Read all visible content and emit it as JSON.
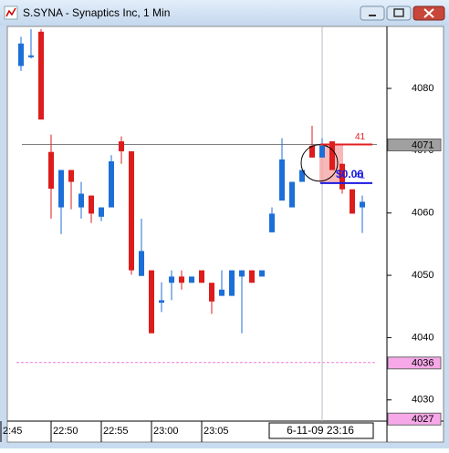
{
  "window": {
    "title": "S.SYNA - Synaptics Inc, 1 Min"
  },
  "chart_data": {
    "type": "candlestick",
    "categories": [
      "2:45",
      null,
      null,
      null,
      null,
      "22:50",
      null,
      null,
      null,
      null,
      "22:55",
      null,
      null,
      null,
      null,
      "23:00",
      null,
      null,
      null,
      null,
      "23:05",
      null,
      null,
      null,
      null,
      null,
      null,
      null,
      null,
      null,
      null,
      null,
      null,
      null,
      null
    ],
    "open": [
      4083.6,
      4085.0,
      4089.1,
      4069.8,
      4060.9,
      4066.9,
      4060.9,
      4062.8,
      4059.4,
      4060.9,
      4071.5,
      4069.9,
      4049.9,
      4050.8,
      4045.6,
      4048.8,
      4049.8,
      4048.8,
      4050.8,
      4048.8,
      4046.7,
      4046.7,
      4049.8,
      4050.8,
      4049.8,
      4056.9,
      4062.0,
      4060.9,
      4065.0,
      4070.8,
      4068.9,
      4071.5,
      4067.9,
      4063.8,
      4060.9
    ],
    "high": [
      4088.3,
      4089.5,
      4089.5,
      4072.6,
      4066.9,
      4066.9,
      4065.0,
      4062.8,
      4060.9,
      4069.3,
      4072.3,
      4069.9,
      4059.1,
      4050.8,
      4048.9,
      4050.8,
      4050.8,
      4049.8,
      4050.8,
      4048.8,
      4050.8,
      4050.8,
      4050.8,
      4050.8,
      4050.8,
      4060.9,
      4072.0,
      4065.0,
      4066.9,
      4074.0,
      4072.0,
      4071.5,
      4067.9,
      4063.8,
      4062.8
    ],
    "low": [
      4082.8,
      4084.8,
      4075.0,
      4059.1,
      4056.6,
      4060.6,
      4059.1,
      4058.4,
      4058.7,
      4060.9,
      4067.9,
      4050.1,
      4049.9,
      4040.7,
      4044.1,
      4046.0,
      4047.7,
      4048.8,
      4048.8,
      4043.8,
      4046.7,
      4046.7,
      4040.7,
      4048.8,
      4049.8,
      4056.9,
      4062.0,
      4060.9,
      4065.0,
      4068.9,
      4068.9,
      4066.9,
      4063.1,
      4059.9,
      4056.8
    ],
    "close": [
      4087.2,
      4085.3,
      4075.0,
      4063.9,
      4066.9,
      4065.0,
      4063.1,
      4059.9,
      4060.9,
      4068.3,
      4069.9,
      4050.8,
      4053.9,
      4040.7,
      4046.0,
      4049.8,
      4048.8,
      4049.8,
      4048.8,
      4045.8,
      4047.7,
      4050.8,
      4050.8,
      4048.8,
      4050.8,
      4059.9,
      4068.6,
      4065.0,
      4066.9,
      4068.9,
      4070.8,
      4066.9,
      4063.8,
      4059.9,
      4061.8
    ],
    "ylim": [
      4026.6,
      4089.8
    ],
    "yticks": [
      4030,
      4040,
      4050,
      4060,
      4070,
      4080
    ],
    "up_color": "#1c6fd8",
    "down_color": "#dd1c1c",
    "price_boxes": [
      {
        "value": 4071,
        "color": "#a0a0a0",
        "line": "#808080"
      },
      {
        "value": 4036,
        "color": "#f7a8e8",
        "line": "#f07ad8"
      },
      {
        "value": 4027,
        "color": "#f7a8e8",
        "line": null
      }
    ],
    "orders": [
      {
        "value": 4071,
        "label": "41",
        "color": "#e02020"
      },
      {
        "value": 4064.8,
        "label": "41",
        "color": "#1a1ae0",
        "pnl": "$0.06"
      }
    ],
    "cursor": {
      "index": 30,
      "label": "6-11-09  23:16"
    }
  }
}
